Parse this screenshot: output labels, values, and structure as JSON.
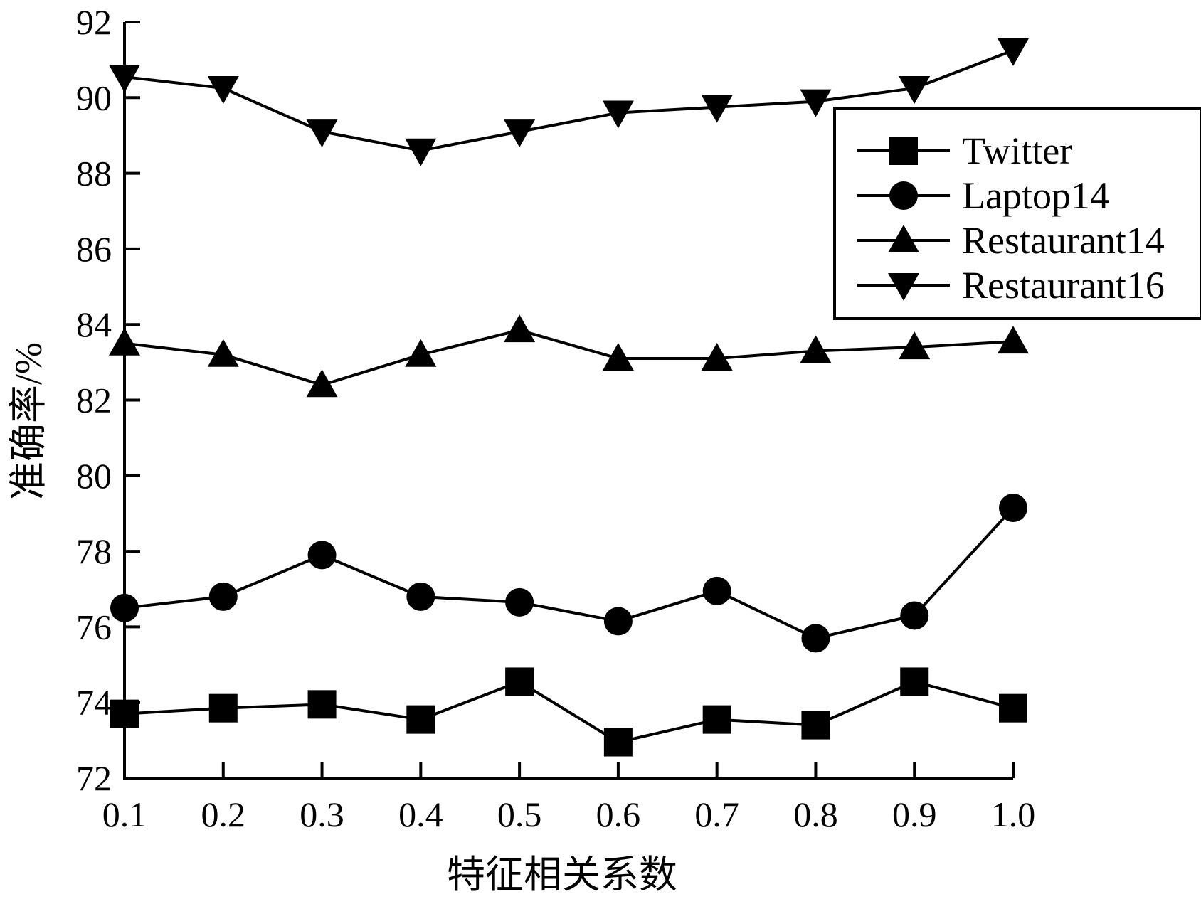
{
  "chart_data": {
    "type": "line",
    "xlabel": "特征相关系数",
    "ylabel": "准确率/%",
    "x": [
      0.1,
      0.2,
      0.3,
      0.4,
      0.5,
      0.6,
      0.7,
      0.8,
      0.9,
      1.0
    ],
    "x_tick_labels": [
      "0.1",
      "0.2",
      "0.3",
      "0.4",
      "0.5",
      "0.6",
      "0.7",
      "0.8",
      "0.9",
      "1.0"
    ],
    "ylim": [
      72,
      92
    ],
    "y_ticks": [
      72,
      74,
      76,
      78,
      80,
      82,
      84,
      86,
      88,
      90,
      92
    ],
    "y_tick_labels": [
      "72",
      "74",
      "76",
      "78",
      "80",
      "82",
      "84",
      "86",
      "88",
      "90",
      "92"
    ],
    "grid": false,
    "legend_position": "top-right",
    "series": [
      {
        "name": "Twitter",
        "marker": "square",
        "values": [
          73.7,
          73.85,
          73.95,
          73.55,
          74.55,
          72.95,
          73.55,
          73.4,
          74.55,
          73.85
        ]
      },
      {
        "name": "Laptop14",
        "marker": "circle",
        "values": [
          76.5,
          76.8,
          77.9,
          76.8,
          76.65,
          76.15,
          76.95,
          75.7,
          76.3,
          79.15
        ]
      },
      {
        "name": "Restaurant14",
        "marker": "triangle-up",
        "values": [
          83.5,
          83.2,
          82.4,
          83.2,
          83.85,
          83.1,
          83.1,
          83.3,
          83.4,
          83.55
        ]
      },
      {
        "name": "Restaurant16",
        "marker": "triangle-down",
        "values": [
          90.55,
          90.25,
          89.1,
          88.6,
          89.1,
          89.6,
          89.75,
          89.9,
          90.25,
          91.25
        ]
      }
    ],
    "colors": {
      "line": "#000000",
      "marker": "#000000",
      "background": "#ffffff"
    }
  }
}
